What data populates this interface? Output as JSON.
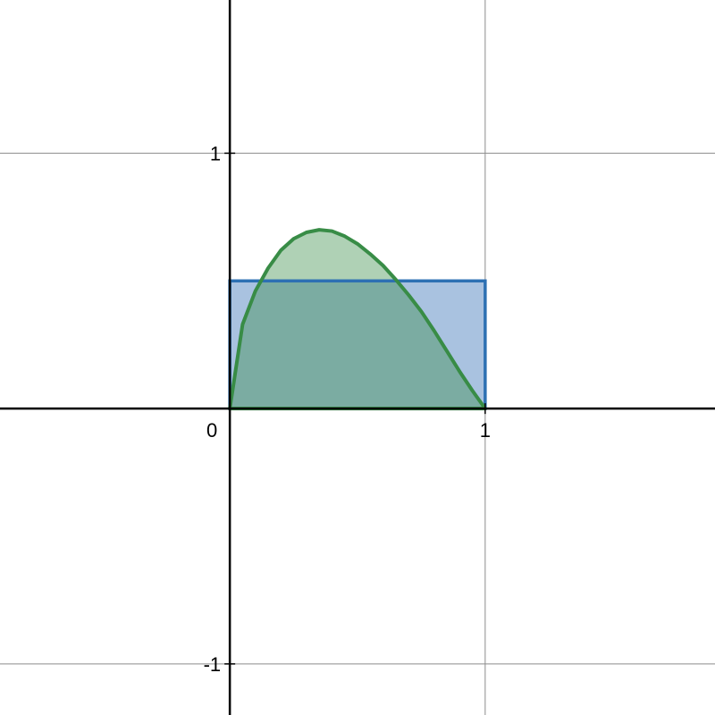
{
  "chart_data": {
    "type": "area",
    "title": "",
    "xlabel": "",
    "ylabel": "",
    "xlim": [
      -0.9,
      1.9
    ],
    "ylim": [
      -1.2,
      1.6
    ],
    "grid": true,
    "x_ticks": [
      {
        "value": 0,
        "label": "0"
      },
      {
        "value": 1,
        "label": "1"
      }
    ],
    "y_ticks": [
      {
        "value": 1,
        "label": "1"
      },
      {
        "value": -1,
        "label": "-1"
      }
    ],
    "series": [
      {
        "kind": "rectangle",
        "x_range": [
          0,
          1
        ],
        "y_range": [
          0,
          0.5
        ],
        "color": "#2d70b3",
        "fill": "#a9c2e0"
      },
      {
        "kind": "curve",
        "points": [
          [
            0,
            0
          ],
          [
            0.05,
            0.33
          ],
          [
            0.1,
            0.46
          ],
          [
            0.15,
            0.55
          ],
          [
            0.2,
            0.62
          ],
          [
            0.25,
            0.665
          ],
          [
            0.3,
            0.69
          ],
          [
            0.35,
            0.7
          ],
          [
            0.4,
            0.695
          ],
          [
            0.45,
            0.675
          ],
          [
            0.5,
            0.645
          ],
          [
            0.55,
            0.605
          ],
          [
            0.6,
            0.56
          ],
          [
            0.65,
            0.505
          ],
          [
            0.7,
            0.445
          ],
          [
            0.75,
            0.38
          ],
          [
            0.8,
            0.305
          ],
          [
            0.85,
            0.225
          ],
          [
            0.9,
            0.145
          ],
          [
            0.95,
            0.07
          ],
          [
            1,
            0
          ]
        ],
        "color": "#388c46",
        "fill": "#388c46"
      }
    ]
  }
}
